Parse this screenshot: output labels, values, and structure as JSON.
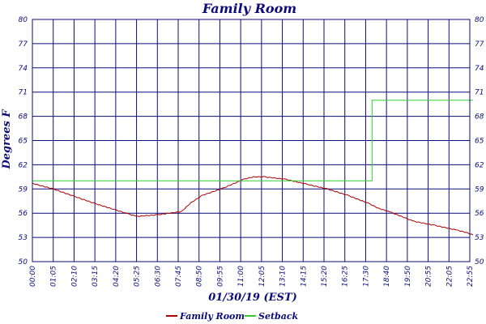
{
  "chart_data": {
    "type": "line",
    "title": "Family Room",
    "xlabel": "01/30/19 (EST)",
    "ylabel": "Degrees F",
    "x_ticks": [
      "00:00",
      "01:05",
      "02:10",
      "03:15",
      "04:20",
      "05:25",
      "06:30",
      "07:35",
      "08:40",
      "09:45",
      "10:50",
      "11:55",
      "13:00",
      "14:05",
      "15:10",
      "16:15",
      "17:20",
      "18:25",
      "19:30",
      "20:35",
      "21:40",
      "22:45"
    ],
    "x_tick_labels": [
      "00:00",
      "01:05",
      "02:10",
      "03:15",
      "04:20",
      "05:25",
      "06:30",
      "07:45",
      "08:50",
      "09:55",
      "11:00",
      "12:05",
      "13:10",
      "14:15",
      "15:20",
      "16:25",
      "17:30",
      "18:40",
      "19:50",
      "20:55",
      "22:05",
      "22:55"
    ],
    "y_ticks": [
      50,
      53,
      56,
      59,
      62,
      65,
      68,
      71,
      74,
      77,
      80
    ],
    "y_tick_labels": [
      "50",
      "53",
      "56",
      "59",
      "62",
      "65",
      "68",
      "71",
      "74",
      "77",
      "80"
    ],
    "ylim": [
      50,
      80
    ],
    "grid": true,
    "legend_position": "bottom-center",
    "series": [
      {
        "name": "Family Room",
        "color": "#aa0000",
        "x": [
          "00:00",
          "01:05",
          "02:10",
          "03:15",
          "04:20",
          "05:00",
          "05:25",
          "06:30",
          "07:45",
          "08:15",
          "08:50",
          "09:55",
          "11:00",
          "11:30",
          "12:05",
          "13:10",
          "14:15",
          "15:20",
          "16:25",
          "17:30",
          "18:00",
          "18:40",
          "19:50",
          "20:55",
          "22:05",
          "22:35",
          "22:55"
        ],
        "values": [
          59.7,
          59.0,
          58.1,
          57.2,
          56.4,
          55.9,
          55.6,
          55.8,
          56.2,
          57.3,
          58.2,
          59.1,
          60.2,
          60.5,
          60.5,
          60.2,
          59.6,
          59.0,
          58.2,
          57.2,
          56.6,
          56.1,
          55.0,
          54.5,
          53.9,
          53.6,
          53.3
        ]
      },
      {
        "name": "Setback",
        "color": "#33cc33",
        "x": [
          "00:00",
          "17:40",
          "17:40",
          "22:55"
        ],
        "values": [
          60.0,
          60.0,
          70.0,
          70.0
        ]
      }
    ]
  }
}
